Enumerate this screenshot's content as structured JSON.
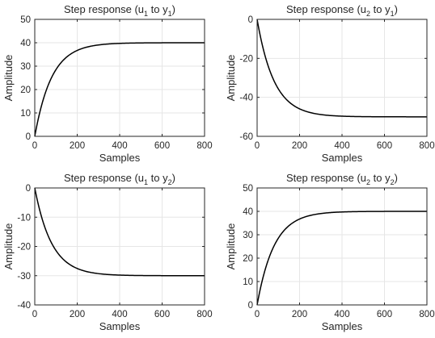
{
  "chart_data": [
    {
      "type": "line",
      "title": "Step response (u",
      "title_sub_1": "1",
      "title_mid": " to y",
      "title_sub_2": "1",
      "title_end": ")",
      "xlabel": "Samples",
      "ylabel": "Amplitude",
      "xlim": [
        0,
        800
      ],
      "ylim": [
        0,
        50
      ],
      "xticks": [
        "0",
        "200",
        "400",
        "600",
        "800"
      ],
      "yticks": [
        "0",
        "10",
        "20",
        "30",
        "40",
        "50"
      ],
      "grid": true,
      "series": [
        {
          "final_value": 40,
          "time_constant": 80,
          "x": [
            0,
            50,
            100,
            150,
            200,
            300,
            400,
            500,
            600,
            800
          ],
          "y": [
            0,
            18.6,
            28.5,
            33.9,
            36.7,
            38.9,
            39.7,
            39.9,
            40.0,
            40.0
          ]
        }
      ]
    },
    {
      "type": "line",
      "title": "Step response (u",
      "title_sub_1": "2",
      "title_mid": " to y",
      "title_sub_2": "1",
      "title_end": ")",
      "xlabel": "Samples",
      "ylabel": "Amplitude",
      "xlim": [
        0,
        800
      ],
      "ylim": [
        -60,
        0
      ],
      "xticks": [
        "0",
        "200",
        "400",
        "600",
        "800"
      ],
      "yticks": [
        "-60",
        "-40",
        "-20",
        "0"
      ],
      "grid": true,
      "series": [
        {
          "final_value": -50,
          "time_constant": 80,
          "x": [
            0,
            50,
            100,
            150,
            200,
            300,
            400,
            500,
            600,
            800
          ],
          "y": [
            0,
            -23.2,
            -35.7,
            -42.3,
            -45.9,
            -48.8,
            -49.7,
            -49.9,
            -50.0,
            -50.0
          ]
        }
      ]
    },
    {
      "type": "line",
      "title": "Step response (u",
      "title_sub_1": "1",
      "title_mid": " to y",
      "title_sub_2": "2",
      "title_end": ")",
      "xlabel": "Samples",
      "ylabel": "Amplitude",
      "xlim": [
        0,
        800
      ],
      "ylim": [
        -40,
        0
      ],
      "xticks": [
        "0",
        "200",
        "400",
        "600",
        "800"
      ],
      "yticks": [
        "-40",
        "-30",
        "-20",
        "-10",
        "0"
      ],
      "grid": true,
      "series": [
        {
          "final_value": -30,
          "time_constant": 80,
          "x": [
            0,
            50,
            100,
            150,
            200,
            300,
            400,
            500,
            600,
            800
          ],
          "y": [
            0,
            -13.9,
            -21.4,
            -25.4,
            -27.5,
            -29.3,
            -29.8,
            -29.9,
            -30.0,
            -30.0
          ]
        }
      ]
    },
    {
      "type": "line",
      "title": "Step response (u",
      "title_sub_1": "2",
      "title_mid": " to y",
      "title_sub_2": "2",
      "title_end": ")",
      "xlabel": "Samples",
      "ylabel": "Amplitude",
      "xlim": [
        0,
        800
      ],
      "ylim": [
        0,
        50
      ],
      "xticks": [
        "0",
        "200",
        "400",
        "600",
        "800"
      ],
      "yticks": [
        "0",
        "10",
        "20",
        "30",
        "40",
        "50"
      ],
      "grid": true,
      "series": [
        {
          "final_value": 40,
          "time_constant": 80,
          "x": [
            0,
            50,
            100,
            150,
            200,
            300,
            400,
            500,
            600,
            800
          ],
          "y": [
            0,
            18.6,
            28.5,
            33.9,
            36.7,
            38.9,
            39.7,
            39.9,
            40.0,
            40.0
          ]
        }
      ]
    }
  ],
  "colors": {
    "line": "#000000",
    "axes": "#262626",
    "grid": "#e6e6e6",
    "background": "#ffffff"
  }
}
